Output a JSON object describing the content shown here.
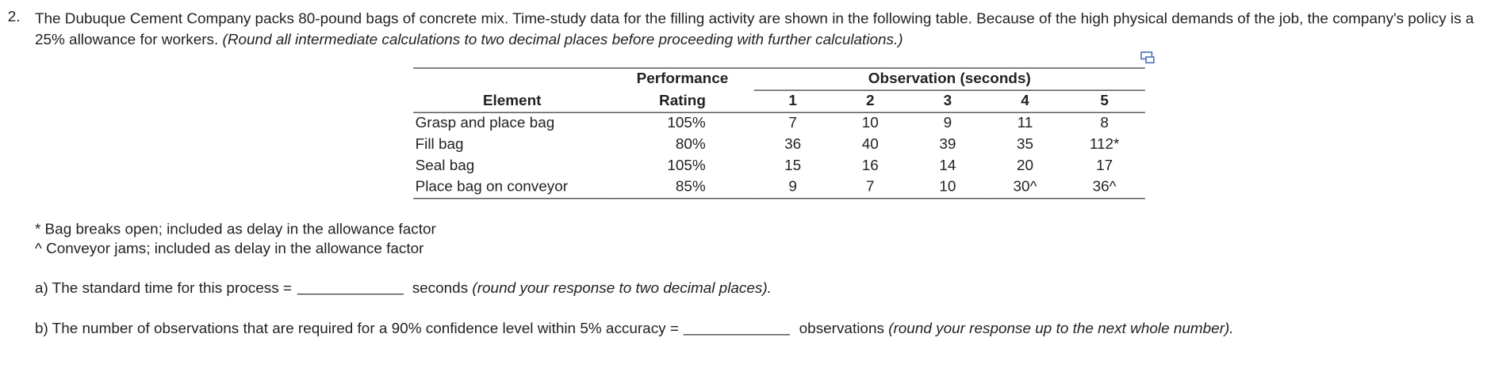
{
  "question": {
    "number": "2.",
    "text": "The Dubuque Cement Company packs 80-pound bags of concrete mix. Time-study data for the filling activity are shown in the following table. Because of the high physical demands of the job, the company's policy is a 25% allowance for workers.",
    "instruction": "(Round all intermediate calculations to two decimal places before proceeding with further calculations.)"
  },
  "table": {
    "header": {
      "element": "Element",
      "rating": [
        "Performance",
        "Rating"
      ],
      "observation": "Observation (seconds)",
      "columns": [
        "1",
        "2",
        "3",
        "4",
        "5"
      ]
    },
    "rows": [
      [
        "Grasp and place bag",
        "105%",
        "7",
        "10",
        "9",
        "11",
        "8"
      ],
      [
        "Fill bag",
        "80%",
        "36",
        "40",
        "39",
        "35",
        "112*"
      ],
      [
        "Seal bag",
        "105%",
        "15",
        "16",
        "14",
        "20",
        "17"
      ],
      [
        "Place bag on conveyor",
        "85%",
        "9",
        "7",
        "10",
        "30^",
        "36^"
      ]
    ]
  },
  "notes": [
    "* Bag breaks open; included as delay in the allowance factor",
    "^ Conveyor jams; included as delay in the allowance factor"
  ],
  "parts": [
    {
      "label": "a) The standard time for this process =",
      "unit": "seconds",
      "hint": "(round your response to two decimal places)."
    },
    {
      "label": "b) The number of observations that are required for a 90% confidence level within 5% accuracy =",
      "unit": "observations",
      "hint": "(round your response up to the next whole number)."
    }
  ]
}
